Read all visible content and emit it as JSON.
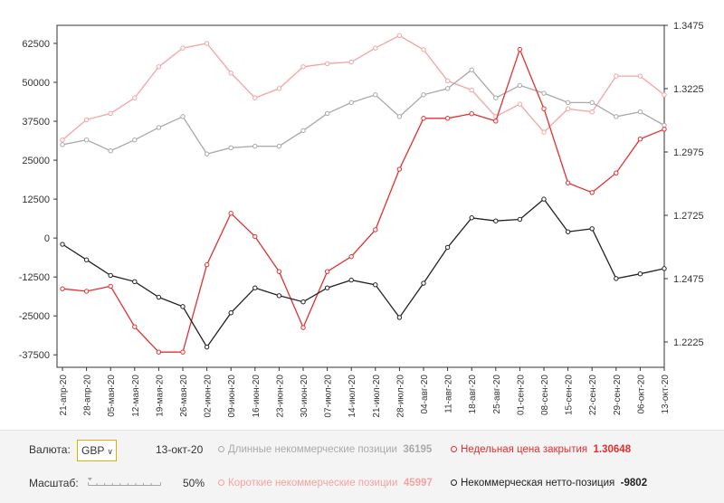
{
  "chart_data": {
    "type": "line",
    "x": [
      "21-апр-20",
      "28-апр-20",
      "05-мая-20",
      "12-мая-20",
      "19-мая-20",
      "26-мая-20",
      "02-июн-20",
      "09-июн-20",
      "16-июн-20",
      "23-июн-20",
      "30-июн-20",
      "07-июл-20",
      "14-июл-20",
      "21-июл-20",
      "28-июл-20",
      "04-авг-20",
      "11-авг-20",
      "18-авг-20",
      "25-авг-20",
      "01-сен-20",
      "08-сен-20",
      "15-сен-20",
      "22-сен-20",
      "29-сен-20",
      "06-окт-20",
      "13-окт-20"
    ],
    "left_axis": {
      "ylim": [
        -41500,
        68300
      ],
      "ticks": [
        62500,
        50000,
        37500,
        25000,
        12500,
        0,
        -12500,
        -25000,
        -37500
      ],
      "tick_labels": [
        "62500",
        "50000",
        "37500",
        "25000",
        "12500",
        "0",
        "-12500",
        "-25000",
        "-37500"
      ]
    },
    "right_axis": {
      "ylim": [
        1.2125,
        1.3475
      ],
      "ticks": [
        1.3475,
        1.3225,
        1.2975,
        1.2725,
        1.2475,
        1.2225
      ],
      "tick_labels": [
        "1.3475",
        "1.3225",
        "1.2975",
        "1.2725",
        "1.2475",
        "1.2225"
      ]
    },
    "series": [
      {
        "name": "Короткие некоммерческие позиции",
        "axis": "left",
        "color": "#f4a3a3",
        "values": [
          31500,
          38000,
          40000,
          45000,
          55000,
          61000,
          62500,
          53000,
          45000,
          48000,
          55000,
          56000,
          56500,
          61000,
          65000,
          60500,
          50500,
          47500,
          39000,
          43000,
          34000,
          41500,
          40500,
          52000,
          52000,
          45997
        ]
      },
      {
        "name": "Длинные некоммерческие позиции",
        "axis": "left",
        "color": "#a8a8a8",
        "values": [
          30000,
          31500,
          28000,
          31500,
          35500,
          39000,
          27000,
          29000,
          29500,
          29500,
          34500,
          40000,
          43500,
          46000,
          39000,
          46000,
          48000,
          54000,
          45000,
          49000,
          46500,
          43500,
          43500,
          39000,
          40500,
          36195
        ]
      },
      {
        "name": "Недельная цена закрытия",
        "axis": "right",
        "color": "#e23030",
        "values": [
          1.2435,
          1.2425,
          1.2445,
          1.2285,
          1.2185,
          1.2185,
          1.253,
          1.2733,
          1.2641,
          1.2503,
          1.2282,
          1.2503,
          1.2562,
          1.2668,
          1.2907,
          1.3108,
          1.3108,
          1.3126,
          1.3097,
          1.338,
          1.3146,
          1.2853,
          1.2815,
          1.2892,
          1.3026,
          1.3065
        ]
      },
      {
        "name": "Некоммерческая нетто-позиция",
        "axis": "left",
        "color": "#222222",
        "values": [
          -2000,
          -7000,
          -12000,
          -14000,
          -19000,
          -22000,
          -35000,
          -24000,
          -16000,
          -18500,
          -20500,
          -16000,
          -13500,
          -15000,
          -25500,
          -14500,
          -3000,
          6500,
          5500,
          6000,
          12500,
          2000,
          3000,
          -13000,
          -11500,
          -9802
        ]
      }
    ]
  },
  "controls": {
    "currency_label": "Валюта:",
    "currency_value": "GBP",
    "date": "13-окт-20",
    "scale_label": "Масштаб:",
    "scale_value": "50%"
  },
  "legend": [
    {
      "label": "Длинные некоммерческие позиции",
      "value": "36195",
      "color": "#a8a8a8"
    },
    {
      "label": "Недельная цена закрытия",
      "value": "1.30648",
      "color": "#e23030"
    },
    {
      "label": "Короткие некоммерческие позиции",
      "value": "45997",
      "color": "#f4a3a3"
    },
    {
      "label": "Некоммерческая нетто-позиция",
      "value": "-9802",
      "color": "#222222"
    }
  ]
}
